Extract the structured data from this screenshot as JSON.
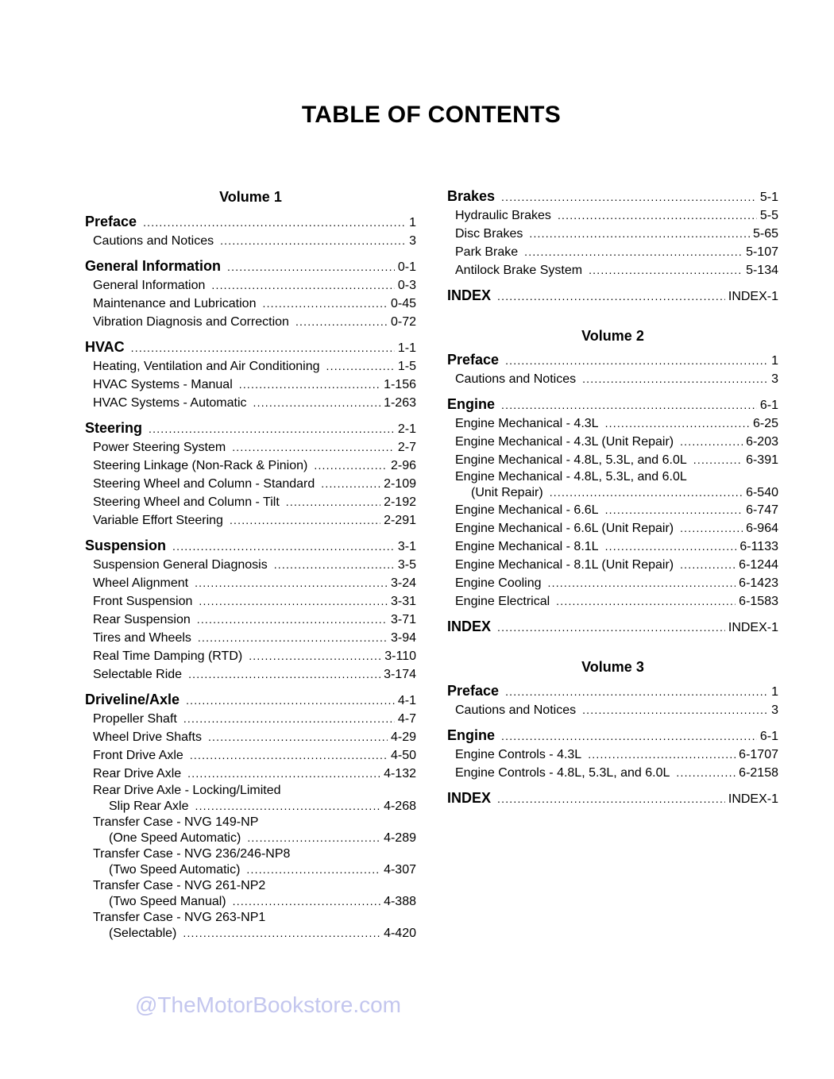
{
  "title": "TABLE OF CONTENTS",
  "watermark": "@TheMotorBookstore.com",
  "columns": [
    [
      {
        "volume": "Volume 1"
      },
      {
        "entries": [
          {
            "head": true,
            "label": "Preface",
            "page": "1"
          },
          {
            "label": "Cautions and Notices",
            "page": "3"
          }
        ]
      },
      {
        "entries": [
          {
            "head": true,
            "label": "General Information",
            "page": "0-1"
          },
          {
            "label": "General Information",
            "page": "0-3"
          },
          {
            "label": "Maintenance and Lubrication",
            "page": "0-45"
          },
          {
            "label": "Vibration Diagnosis and Correction",
            "page": "0-72"
          }
        ]
      },
      {
        "entries": [
          {
            "head": true,
            "label": "HVAC",
            "page": "1-1"
          },
          {
            "label": "Heating, Ventilation and Air Conditioning",
            "page": "1-5"
          },
          {
            "label": "HVAC Systems - Manual",
            "page": "1-156"
          },
          {
            "label": "HVAC Systems - Automatic",
            "page": "1-263"
          }
        ]
      },
      {
        "entries": [
          {
            "head": true,
            "label": "Steering",
            "page": "2-1"
          },
          {
            "label": "Power Steering System",
            "page": "2-7"
          },
          {
            "label": "Steering Linkage (Non-Rack & Pinion)",
            "page": "2-96"
          },
          {
            "label": "Steering Wheel and Column - Standard",
            "page": "2-109"
          },
          {
            "label": "Steering Wheel and Column - Tilt",
            "page": "2-192"
          },
          {
            "label": "Variable Effort Steering",
            "page": "2-291"
          }
        ]
      },
      {
        "entries": [
          {
            "head": true,
            "label": "Suspension",
            "page": "3-1"
          },
          {
            "label": "Suspension General Diagnosis",
            "page": "3-5"
          },
          {
            "label": "Wheel Alignment",
            "page": "3-24"
          },
          {
            "label": "Front Suspension",
            "page": "3-31"
          },
          {
            "label": "Rear Suspension",
            "page": "3-71"
          },
          {
            "label": "Tires and Wheels",
            "page": "3-94"
          },
          {
            "label": "Real Time Damping (RTD)",
            "page": "3-110"
          },
          {
            "label": "Selectable Ride",
            "page": "3-174"
          }
        ]
      },
      {
        "entries": [
          {
            "head": true,
            "label": "Driveline/Axle",
            "page": "4-1"
          },
          {
            "label": "Propeller Shaft",
            "page": "4-7"
          },
          {
            "label": "Wheel Drive Shafts",
            "page": "4-29"
          },
          {
            "label": "Front Drive Axle",
            "page": "4-50"
          },
          {
            "label": "Rear Drive Axle",
            "page": "4-132"
          },
          {
            "first": "Rear Drive Axle - Locking/Limited",
            "label": "Slip Rear Axle",
            "page": "4-268"
          },
          {
            "first": "Transfer Case - NVG 149-NP",
            "label": "(One Speed Automatic)",
            "page": "4-289"
          },
          {
            "first": "Transfer Case - NVG 236/246-NP8",
            "label": "(Two Speed Automatic)",
            "page": "4-307"
          },
          {
            "first": "Transfer Case - NVG 261-NP2",
            "label": "(Two Speed Manual)",
            "page": "4-388"
          },
          {
            "first": "Transfer Case - NVG 263-NP1",
            "label": "(Selectable)",
            "page": "4-420"
          }
        ]
      }
    ],
    [
      {
        "entries": [
          {
            "head": true,
            "label": "Brakes",
            "page": "5-1"
          },
          {
            "label": "Hydraulic Brakes",
            "page": "5-5"
          },
          {
            "label": "Disc Brakes",
            "page": "5-65"
          },
          {
            "label": "Park Brake",
            "page": "5-107"
          },
          {
            "label": "Antilock Brake System",
            "page": "5-134"
          }
        ]
      },
      {
        "entries": [
          {
            "head": true,
            "label": "INDEX",
            "page": "INDEX-1"
          }
        ]
      },
      {
        "volume": "Volume 2"
      },
      {
        "entries": [
          {
            "head": true,
            "label": "Preface",
            "page": "1"
          },
          {
            "label": "Cautions and Notices",
            "page": "3"
          }
        ]
      },
      {
        "entries": [
          {
            "head": true,
            "label": "Engine",
            "page": "6-1"
          },
          {
            "label": "Engine Mechanical - 4.3L",
            "page": "6-25"
          },
          {
            "label": "Engine Mechanical - 4.3L (Unit Repair)",
            "page": "6-203"
          },
          {
            "label": "Engine Mechanical - 4.8L, 5.3L, and 6.0L",
            "page": "6-391"
          },
          {
            "first": "Engine Mechanical - 4.8L, 5.3L, and 6.0L",
            "label": "(Unit Repair)",
            "page": "6-540"
          },
          {
            "label": "Engine Mechanical - 6.6L",
            "page": "6-747"
          },
          {
            "label": "Engine Mechanical - 6.6L (Unit Repair)",
            "page": "6-964"
          },
          {
            "label": "Engine Mechanical - 8.1L",
            "page": "6-1133"
          },
          {
            "label": "Engine Mechanical - 8.1L (Unit Repair)",
            "page": "6-1244"
          },
          {
            "label": "Engine Cooling",
            "page": "6-1423"
          },
          {
            "label": "Engine Electrical",
            "page": "6-1583"
          }
        ]
      },
      {
        "entries": [
          {
            "head": true,
            "label": "INDEX",
            "page": "INDEX-1"
          }
        ]
      },
      {
        "volume": "Volume 3"
      },
      {
        "entries": [
          {
            "head": true,
            "label": "Preface",
            "page": "1"
          },
          {
            "label": "Cautions and Notices",
            "page": "3"
          }
        ]
      },
      {
        "entries": [
          {
            "head": true,
            "label": "Engine",
            "page": "6-1"
          },
          {
            "label": "Engine Controls - 4.3L",
            "page": "6-1707"
          },
          {
            "label": "Engine Controls - 4.8L, 5.3L, and 6.0L",
            "page": "6-2158"
          }
        ]
      },
      {
        "entries": [
          {
            "head": true,
            "label": "INDEX",
            "page": "INDEX-1"
          }
        ]
      }
    ]
  ]
}
